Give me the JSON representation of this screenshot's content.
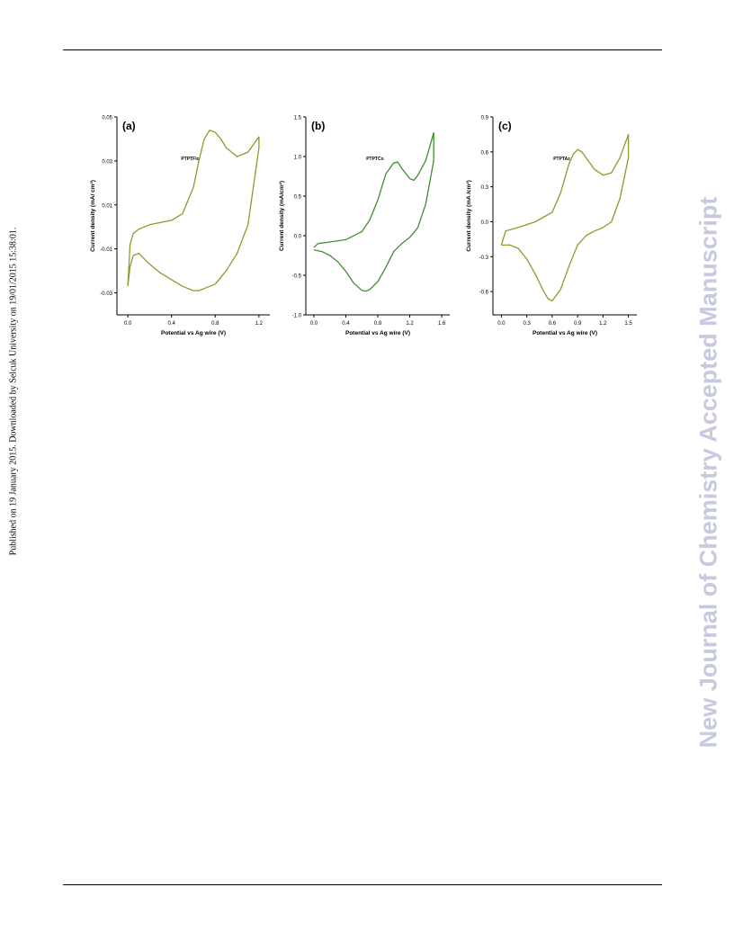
{
  "sidebar_left": {
    "text": "Published on 19 January 2015. Downloaded by Selcuk University on 19/01/2015 15:38:01."
  },
  "sidebar_right": {
    "text": "New Journal of Chemistry Accepted Manuscript"
  },
  "colors": {
    "curve_a": "#8c9a2e",
    "curve_b": "#3f8f2f",
    "curve_c": "#8c9a2e",
    "axis": "#000000"
  },
  "chart_data": [
    {
      "type": "line",
      "panel_label": "(a)",
      "compound": "PTPTFlo",
      "xlabel": "Potential vs Ag wire (V)",
      "ylabel": "Current density (mA/ cm²)",
      "xlim": [
        -0.1,
        1.3
      ],
      "ylim": [
        -0.04,
        0.05
      ],
      "xticks": [
        0.0,
        0.4,
        0.8,
        1.2
      ],
      "yticks": [
        0.05,
        0.03,
        0.01,
        -0.01,
        -0.03
      ],
      "ytick_labels": [
        "0.05",
        "0.03",
        "0.01",
        "-0.01",
        "-0.03"
      ],
      "xtick_labels": [
        "0.0",
        "0.4",
        "0.8",
        "1.2"
      ],
      "series": [
        {
          "x": [
            0.0,
            0.02,
            0.05,
            0.1,
            0.2,
            0.3,
            0.4,
            0.5,
            0.6,
            0.65,
            0.7,
            0.75,
            0.8,
            0.85,
            0.9,
            1.0,
            1.1,
            1.2,
            1.2,
            1.1,
            1.0,
            0.9,
            0.8,
            0.7,
            0.65,
            0.6,
            0.5,
            0.4,
            0.3,
            0.2,
            0.1,
            0.05,
            0.02,
            0.0
          ],
          "y": [
            -0.027,
            -0.008,
            -0.003,
            -0.001,
            0.001,
            0.002,
            0.003,
            0.006,
            0.018,
            0.03,
            0.04,
            0.044,
            0.043,
            0.04,
            0.036,
            0.032,
            0.034,
            0.041,
            0.036,
            0.001,
            -0.012,
            -0.02,
            -0.026,
            -0.028,
            -0.029,
            -0.029,
            -0.027,
            -0.024,
            -0.021,
            -0.017,
            -0.012,
            -0.013,
            -0.018,
            -0.027
          ]
        }
      ]
    },
    {
      "type": "line",
      "panel_label": "(b)",
      "compound": "PTPTCo",
      "xlabel": "Potential vs Ag wire (V)",
      "ylabel": "Current density (mA/cm²)",
      "xlim": [
        -0.1,
        1.7
      ],
      "ylim": [
        -1.0,
        1.5
      ],
      "xticks": [
        0.0,
        0.4,
        0.8,
        1.2,
        1.6
      ],
      "yticks": [
        1.5,
        1.0,
        0.5,
        0.0,
        -0.5,
        -1.0
      ],
      "ytick_labels": [
        "1.5",
        "1.0",
        "0.5",
        "0.0",
        "-0.5",
        "-1.0"
      ],
      "xtick_labels": [
        "0.0",
        "0.4",
        "0.8",
        "1.2",
        "1.6"
      ],
      "series": [
        {
          "x": [
            0.0,
            0.05,
            0.2,
            0.4,
            0.6,
            0.7,
            0.8,
            0.9,
            1.0,
            1.05,
            1.1,
            1.2,
            1.25,
            1.3,
            1.4,
            1.5,
            1.5,
            1.4,
            1.3,
            1.2,
            1.1,
            1.0,
            0.9,
            0.8,
            0.7,
            0.65,
            0.6,
            0.5,
            0.4,
            0.3,
            0.2,
            0.1,
            0.0
          ],
          "y": [
            -0.15,
            -0.1,
            -0.08,
            -0.05,
            0.05,
            0.2,
            0.45,
            0.78,
            0.92,
            0.93,
            0.85,
            0.72,
            0.7,
            0.76,
            0.95,
            1.3,
            0.95,
            0.4,
            0.1,
            -0.02,
            -0.1,
            -0.2,
            -0.4,
            -0.58,
            -0.68,
            -0.7,
            -0.69,
            -0.6,
            -0.45,
            -0.33,
            -0.25,
            -0.2,
            -0.18
          ]
        }
      ]
    },
    {
      "type": "line",
      "panel_label": "(c)",
      "compound": "PTPTAz",
      "xlabel": "Potential vs Ag wire (V)",
      "ylabel": "Current density (mA /cm²)",
      "xlim": [
        -0.1,
        1.6
      ],
      "ylim": [
        -0.8,
        0.9
      ],
      "xticks": [
        0.0,
        0.3,
        0.6,
        0.9,
        1.2,
        1.5
      ],
      "yticks": [
        0.9,
        0.6,
        0.3,
        0.0,
        -0.3,
        -0.6
      ],
      "ytick_labels": [
        "0.9",
        "0.6",
        "0.3",
        "0.0",
        "-0.3",
        "-0.6"
      ],
      "xtick_labels": [
        "0.0",
        "0.3",
        "0.6",
        "0.9",
        "1.2",
        "1.5"
      ],
      "series": [
        {
          "x": [
            0.0,
            0.05,
            0.2,
            0.4,
            0.6,
            0.7,
            0.8,
            0.85,
            0.9,
            0.95,
            1.0,
            1.1,
            1.2,
            1.3,
            1.4,
            1.5,
            1.5,
            1.4,
            1.3,
            1.2,
            1.1,
            1.0,
            0.9,
            0.8,
            0.7,
            0.6,
            0.55,
            0.5,
            0.4,
            0.3,
            0.2,
            0.1,
            0.0
          ],
          "y": [
            -0.2,
            -0.08,
            -0.05,
            0.0,
            0.08,
            0.25,
            0.5,
            0.58,
            0.62,
            0.6,
            0.55,
            0.45,
            0.4,
            0.42,
            0.55,
            0.75,
            0.55,
            0.2,
            0.0,
            -0.05,
            -0.08,
            -0.12,
            -0.2,
            -0.38,
            -0.58,
            -0.68,
            -0.66,
            -0.6,
            -0.45,
            -0.32,
            -0.23,
            -0.2,
            -0.2
          ]
        }
      ]
    }
  ]
}
